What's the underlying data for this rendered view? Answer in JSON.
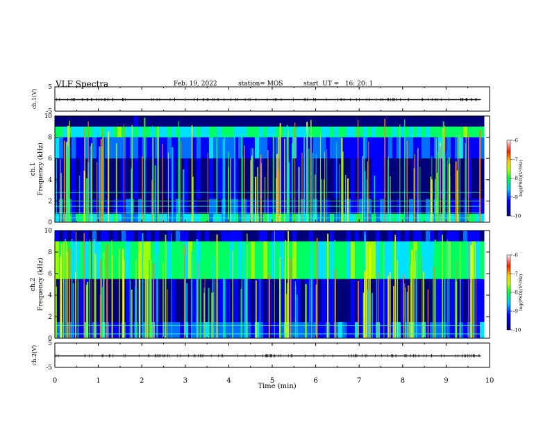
{
  "header": {
    "title": "VLF Spectra",
    "date": "Feb. 19, 2022",
    "station": "station= MOS",
    "start_ut": "start  UT =   16: 20: 1"
  },
  "chart_data": [
    {
      "type": "line",
      "name": "ch1-waveform",
      "ylabel": "ch.1(V)",
      "ylim": [
        -5,
        5
      ],
      "yticks": [
        -5,
        5
      ],
      "xlim": [
        0,
        10
      ],
      "x": [
        0,
        9.8
      ],
      "y": [
        0,
        0
      ]
    },
    {
      "type": "heatmap",
      "name": "ch1-spectrogram",
      "ylabel_top": "ch.1",
      "ylabel": "Frequency (kHz)",
      "ylim": [
        0,
        10
      ],
      "yticks": [
        0,
        2,
        4,
        6,
        8,
        10
      ],
      "xlim": [
        0,
        10
      ],
      "data_end_min": 9.8,
      "colorbar": {
        "label": "log(PSD)(V²/Hz)",
        "range": [
          -10,
          -6
        ],
        "ticks": [
          -10,
          -9,
          -8,
          -7,
          -6
        ]
      },
      "bands_khz": [
        {
          "from": 0.0,
          "to": 0.8,
          "level": -8.5
        },
        {
          "from": 0.8,
          "to": 2.2,
          "level": -9.4
        },
        {
          "from": 2.2,
          "to": 6.0,
          "level": -9.7
        },
        {
          "from": 6.0,
          "to": 8.0,
          "level": -9.1
        },
        {
          "from": 8.0,
          "to": 9.0,
          "level": -8.2
        },
        {
          "from": 9.0,
          "to": 10.0,
          "level": -10.0
        }
      ],
      "tone_lines_khz": [
        0.4,
        0.9,
        1.5,
        2.0,
        2.8
      ]
    },
    {
      "type": "heatmap",
      "name": "ch2-spectrogram",
      "ylabel_top": "ch.2",
      "ylabel": "Frequency (kHz)",
      "ylim": [
        0,
        10
      ],
      "yticks": [
        0,
        2,
        4,
        6,
        8,
        10
      ],
      "xlim": [
        0,
        10
      ],
      "data_end_min": 9.8,
      "colorbar": {
        "label": "log(PSD)(V²/Hz)",
        "range": [
          -10,
          -6
        ],
        "ticks": [
          -10,
          -9,
          -8,
          -7,
          -6
        ]
      },
      "bands_khz": [
        {
          "from": 0.0,
          "to": 1.5,
          "level": -9.0
        },
        {
          "from": 1.5,
          "to": 5.5,
          "level": -9.6
        },
        {
          "from": 5.5,
          "to": 9.0,
          "level": -8.1
        },
        {
          "from": 9.0,
          "to": 10.0,
          "level": -9.5
        }
      ],
      "tone_lines_khz": [
        0.4,
        1.2
      ]
    },
    {
      "type": "line",
      "name": "ch2-waveform",
      "ylabel": "ch.2(V)",
      "ylim": [
        -5,
        5
      ],
      "yticks": [
        -5,
        5
      ],
      "xlim": [
        0,
        10
      ],
      "x": [
        0,
        9.8
      ],
      "y": [
        0,
        0
      ]
    }
  ],
  "xaxis": {
    "label": "Time (min)",
    "ticks": [
      "0",
      "1",
      "2",
      "3",
      "4",
      "5",
      "6",
      "7",
      "8",
      "9",
      "10"
    ]
  },
  "colors": {
    "scale": [
      "#00007a",
      "#0000ff",
      "#0070ff",
      "#00e0ff",
      "#00ff60",
      "#a0ff00",
      "#ffff00",
      "#ff8000",
      "#ff0000"
    ],
    "background": "#000018"
  }
}
